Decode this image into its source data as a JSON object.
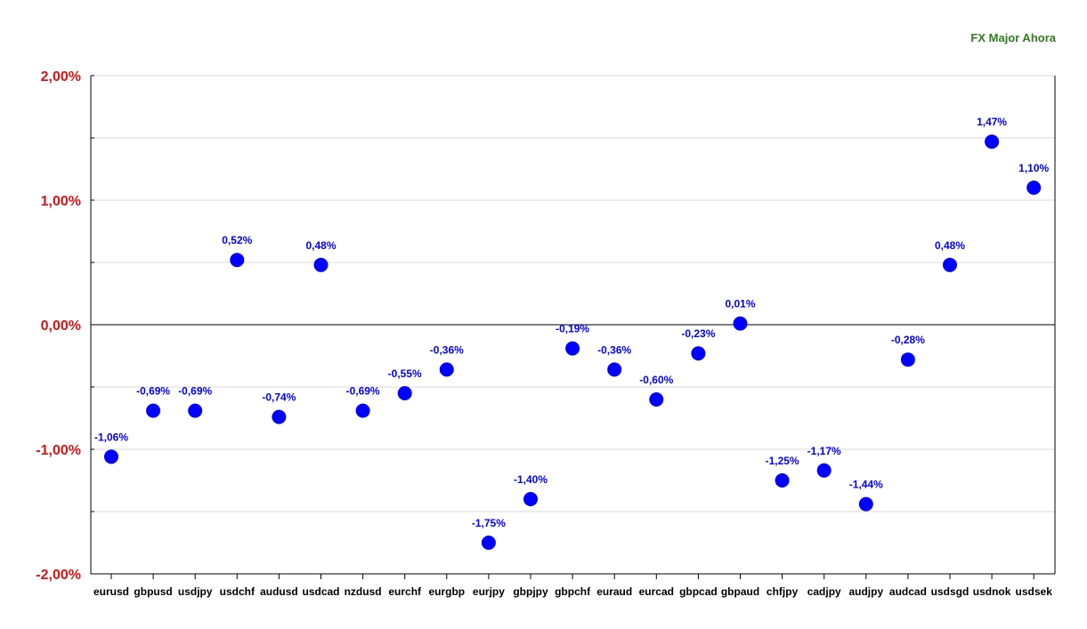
{
  "chart_data": {
    "type": "scatter",
    "title": "FX Major Ahora",
    "xlabel": "",
    "ylabel": "",
    "ylim": [
      -2.0,
      2.0
    ],
    "y_ticks": [
      {
        "value": 2.0,
        "label": "2,00%"
      },
      {
        "value": 1.0,
        "label": "1,00%"
      },
      {
        "value": 0.0,
        "label": "0,00%"
      },
      {
        "value": -1.0,
        "label": "-1,00%"
      },
      {
        "value": -2.0,
        "label": "-2,00%"
      }
    ],
    "grid": true,
    "colors": {
      "points": "#0000ff",
      "tick_labels": "#dd1111",
      "title": "#2e7d1e",
      "grid": "#d9d9d9"
    },
    "categories": [
      "eurusd",
      "gbpusd",
      "usdjpy",
      "usdchf",
      "audusd",
      "usdcad",
      "nzdusd",
      "eurchf",
      "eurgbp",
      "eurjpy",
      "gbpjpy",
      "gbpchf",
      "euraud",
      "eurcad",
      "gbpcad",
      "gbpaud",
      "chfjpy",
      "cadjpy",
      "audjpy",
      "audcad",
      "usdsgd",
      "usdnok",
      "usdsek"
    ],
    "values": [
      -1.06,
      -0.69,
      -0.69,
      0.52,
      -0.74,
      0.48,
      -0.69,
      -0.55,
      -0.36,
      -1.75,
      -1.4,
      -0.19,
      -0.36,
      -0.6,
      -0.23,
      0.01,
      -1.25,
      -1.17,
      -1.44,
      -0.28,
      0.48,
      1.47,
      1.1
    ],
    "data_labels": [
      "-1,06%",
      "-0,69%",
      "-0,69%",
      "0,52%",
      "-0,74%",
      "0,48%",
      "-0,69%",
      "-0,55%",
      "-0,36%",
      "-1,75%",
      "-1,40%",
      "-0,19%",
      "-0,36%",
      "-0,60%",
      "-0,23%",
      "0,01%",
      "-1,25%",
      "-1,17%",
      "-1,44%",
      "-0,28%",
      "0,48%",
      "1,47%",
      "1,10%"
    ]
  }
}
